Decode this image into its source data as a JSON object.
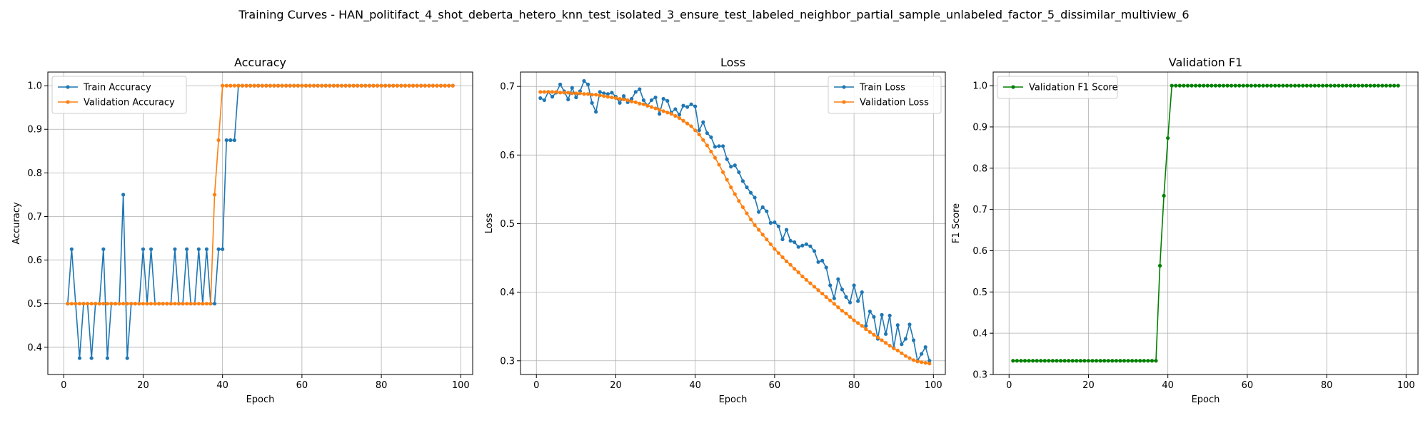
{
  "figure_title": "Training Curves - HAN_politifact_4_shot_deberta_hetero_knn_test_isolated_3_ensure_test_labeled_neighbor_partial_sample_unlabeled_factor_5_dissimilar_multiview_6",
  "colors": {
    "train": "#1f77b4",
    "validation": "#ff7f0e",
    "f1": "#008000",
    "grid": "#b0b0b0"
  },
  "chart_data": [
    {
      "type": "line",
      "title": "Accuracy",
      "xlabel": "Epoch",
      "ylabel": "Accuracy",
      "xlim": [
        -4,
        103
      ],
      "ylim": [
        0.3375,
        1.0313
      ],
      "xticks": [
        0,
        20,
        40,
        60,
        80,
        100
      ],
      "yticks": [
        0.4,
        0.5,
        0.6,
        0.7,
        0.8,
        0.9,
        1.0
      ],
      "ytick_labels": [
        "0.4",
        "0.5",
        "0.6",
        "0.7",
        "0.8",
        "0.9",
        "1.0"
      ],
      "grid": true,
      "legend_position": "upper-left",
      "series": [
        {
          "name": "Train Accuracy",
          "color": "#1f77b4",
          "x_start": 1,
          "values": [
            0.5,
            0.625,
            0.5,
            0.375,
            0.5,
            0.5,
            0.375,
            0.5,
            0.5,
            0.625,
            0.375,
            0.5,
            0.5,
            0.5,
            0.75,
            0.375,
            0.5,
            0.5,
            0.5,
            0.625,
            0.5,
            0.625,
            0.5,
            0.5,
            0.5,
            0.5,
            0.5,
            0.625,
            0.5,
            0.5,
            0.625,
            0.5,
            0.5,
            0.625,
            0.5,
            0.625,
            0.5,
            0.5,
            0.625,
            0.625,
            0.875,
            0.875,
            0.875,
            1.0,
            1.0,
            1.0,
            1.0,
            1.0,
            1.0,
            1.0,
            1.0,
            1.0,
            1.0,
            1.0,
            1.0,
            1.0,
            1.0,
            1.0,
            1.0,
            1.0,
            1.0,
            1.0,
            1.0,
            1.0,
            1.0,
            1.0,
            1.0,
            1.0,
            1.0,
            1.0,
            1.0,
            1.0,
            1.0,
            1.0,
            1.0,
            1.0,
            1.0,
            1.0,
            1.0,
            1.0,
            1.0,
            1.0,
            1.0,
            1.0,
            1.0,
            1.0,
            1.0,
            1.0,
            1.0,
            1.0,
            1.0,
            1.0,
            1.0,
            1.0,
            1.0,
            1.0,
            1.0,
            1.0
          ]
        },
        {
          "name": "Validation Accuracy",
          "color": "#ff7f0e",
          "x_start": 1,
          "values": [
            0.5,
            0.5,
            0.5,
            0.5,
            0.5,
            0.5,
            0.5,
            0.5,
            0.5,
            0.5,
            0.5,
            0.5,
            0.5,
            0.5,
            0.5,
            0.5,
            0.5,
            0.5,
            0.5,
            0.5,
            0.5,
            0.5,
            0.5,
            0.5,
            0.5,
            0.5,
            0.5,
            0.5,
            0.5,
            0.5,
            0.5,
            0.5,
            0.5,
            0.5,
            0.5,
            0.5,
            0.5,
            0.75,
            0.875,
            1.0,
            1.0,
            1.0,
            1.0,
            1.0,
            1.0,
            1.0,
            1.0,
            1.0,
            1.0,
            1.0,
            1.0,
            1.0,
            1.0,
            1.0,
            1.0,
            1.0,
            1.0,
            1.0,
            1.0,
            1.0,
            1.0,
            1.0,
            1.0,
            1.0,
            1.0,
            1.0,
            1.0,
            1.0,
            1.0,
            1.0,
            1.0,
            1.0,
            1.0,
            1.0,
            1.0,
            1.0,
            1.0,
            1.0,
            1.0,
            1.0,
            1.0,
            1.0,
            1.0,
            1.0,
            1.0,
            1.0,
            1.0,
            1.0,
            1.0,
            1.0,
            1.0,
            1.0,
            1.0,
            1.0,
            1.0,
            1.0,
            1.0,
            1.0
          ]
        }
      ]
    },
    {
      "type": "line",
      "title": "Loss",
      "xlabel": "Epoch",
      "ylabel": "Loss",
      "xlim": [
        -4,
        103
      ],
      "ylim": [
        0.28,
        0.721
      ],
      "xticks": [
        0,
        20,
        40,
        60,
        80,
        100
      ],
      "yticks": [
        0.3,
        0.4,
        0.5,
        0.6,
        0.7
      ],
      "ytick_labels": [
        "0.3",
        "0.4",
        "0.5",
        "0.6",
        "0.7"
      ],
      "grid": true,
      "legend_position": "upper-right",
      "series": [
        {
          "name": "Train Loss",
          "color": "#1f77b4",
          "x_start": 1,
          "values": [
            0.683,
            0.68,
            0.692,
            0.685,
            0.691,
            0.703,
            0.693,
            0.681,
            0.698,
            0.684,
            0.693,
            0.708,
            0.703,
            0.676,
            0.663,
            0.692,
            0.69,
            0.689,
            0.691,
            0.685,
            0.676,
            0.686,
            0.677,
            0.682,
            0.692,
            0.696,
            0.68,
            0.672,
            0.68,
            0.684,
            0.66,
            0.682,
            0.679,
            0.662,
            0.667,
            0.659,
            0.672,
            0.67,
            0.674,
            0.671,
            0.636,
            0.648,
            0.632,
            0.626,
            0.612,
            0.613,
            0.613,
            0.594,
            0.583,
            0.585,
            0.575,
            0.562,
            0.553,
            0.545,
            0.538,
            0.517,
            0.524,
            0.518,
            0.501,
            0.502,
            0.496,
            0.477,
            0.491,
            0.475,
            0.473,
            0.466,
            0.468,
            0.47,
            0.467,
            0.46,
            0.444,
            0.446,
            0.436,
            0.41,
            0.391,
            0.419,
            0.404,
            0.393,
            0.385,
            0.41,
            0.387,
            0.4,
            0.351,
            0.372,
            0.364,
            0.332,
            0.367,
            0.339,
            0.366,
            0.319,
            0.352,
            0.324,
            0.332,
            0.353,
            0.33,
            0.3,
            0.31,
            0.32,
            0.3
          ]
        },
        {
          "name": "Validation Loss",
          "color": "#ff7f0e",
          "x_start": 1,
          "values": [
            0.692,
            0.692,
            0.692,
            0.692,
            0.692,
            0.691,
            0.691,
            0.691,
            0.69,
            0.69,
            0.69,
            0.689,
            0.689,
            0.688,
            0.688,
            0.687,
            0.686,
            0.685,
            0.684,
            0.683,
            0.682,
            0.681,
            0.68,
            0.678,
            0.677,
            0.675,
            0.674,
            0.672,
            0.67,
            0.668,
            0.666,
            0.664,
            0.662,
            0.66,
            0.657,
            0.654,
            0.65,
            0.646,
            0.642,
            0.636,
            0.63,
            0.622,
            0.614,
            0.605,
            0.596,
            0.586,
            0.575,
            0.564,
            0.553,
            0.543,
            0.533,
            0.524,
            0.515,
            0.506,
            0.498,
            0.491,
            0.484,
            0.477,
            0.47,
            0.463,
            0.457,
            0.451,
            0.445,
            0.44,
            0.434,
            0.429,
            0.423,
            0.418,
            0.413,
            0.408,
            0.403,
            0.398,
            0.393,
            0.388,
            0.383,
            0.378,
            0.373,
            0.369,
            0.364,
            0.359,
            0.355,
            0.351,
            0.346,
            0.342,
            0.338,
            0.334,
            0.33,
            0.326,
            0.322,
            0.318,
            0.315,
            0.311,
            0.307,
            0.304,
            0.301,
            0.299,
            0.298,
            0.297,
            0.296
          ]
        }
      ]
    },
    {
      "type": "line",
      "title": "Validation F1",
      "xlabel": "Epoch",
      "ylabel": "F1 Score",
      "xlim": [
        -4,
        103
      ],
      "ylim": [
        0.3,
        1.033
      ],
      "xticks": [
        0,
        20,
        40,
        60,
        80,
        100
      ],
      "yticks": [
        0.3,
        0.4,
        0.5,
        0.6,
        0.7,
        0.8,
        0.9,
        1.0
      ],
      "ytick_labels": [
        "0.3",
        "0.4",
        "0.5",
        "0.6",
        "0.7",
        "0.8",
        "0.9",
        "1.0"
      ],
      "grid": true,
      "legend_position": "upper-left",
      "series": [
        {
          "name": "Validation F1 Score",
          "color": "#008000",
          "x_start": 1,
          "values": [
            0.3333,
            0.3333,
            0.3333,
            0.3333,
            0.3333,
            0.3333,
            0.3333,
            0.3333,
            0.3333,
            0.3333,
            0.3333,
            0.3333,
            0.3333,
            0.3333,
            0.3333,
            0.3333,
            0.3333,
            0.3333,
            0.3333,
            0.3333,
            0.3333,
            0.3333,
            0.3333,
            0.3333,
            0.3333,
            0.3333,
            0.3333,
            0.3333,
            0.3333,
            0.3333,
            0.3333,
            0.3333,
            0.3333,
            0.3333,
            0.3333,
            0.3333,
            0.3333,
            0.5636,
            0.7333,
            0.873,
            1.0,
            1.0,
            1.0,
            1.0,
            1.0,
            1.0,
            1.0,
            1.0,
            1.0,
            1.0,
            1.0,
            1.0,
            1.0,
            1.0,
            1.0,
            1.0,
            1.0,
            1.0,
            1.0,
            1.0,
            1.0,
            1.0,
            1.0,
            1.0,
            1.0,
            1.0,
            1.0,
            1.0,
            1.0,
            1.0,
            1.0,
            1.0,
            1.0,
            1.0,
            1.0,
            1.0,
            1.0,
            1.0,
            1.0,
            1.0,
            1.0,
            1.0,
            1.0,
            1.0,
            1.0,
            1.0,
            1.0,
            1.0,
            1.0,
            1.0,
            1.0,
            1.0,
            1.0,
            1.0,
            1.0,
            1.0,
            1.0,
            1.0
          ]
        }
      ]
    }
  ]
}
